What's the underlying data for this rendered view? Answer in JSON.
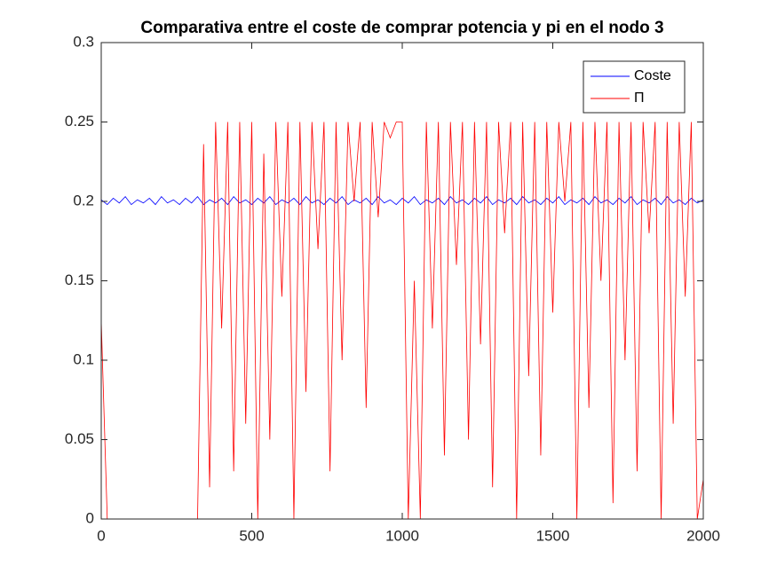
{
  "chart_data": {
    "type": "line",
    "title": "Comparativa entre el coste de comprar potencia y pi en el nodo 3",
    "x": [
      0,
      20,
      40,
      60,
      80,
      100,
      120,
      140,
      160,
      180,
      200,
      220,
      240,
      260,
      280,
      300,
      320,
      340,
      360,
      380,
      400,
      420,
      440,
      460,
      480,
      500,
      520,
      540,
      560,
      580,
      600,
      620,
      640,
      660,
      680,
      700,
      720,
      740,
      760,
      780,
      800,
      820,
      840,
      860,
      880,
      900,
      920,
      940,
      960,
      980,
      1000,
      1020,
      1040,
      1060,
      1080,
      1100,
      1120,
      1140,
      1160,
      1180,
      1200,
      1220,
      1240,
      1260,
      1280,
      1300,
      1320,
      1340,
      1360,
      1380,
      1400,
      1420,
      1440,
      1460,
      1480,
      1500,
      1520,
      1540,
      1560,
      1580,
      1600,
      1620,
      1640,
      1660,
      1680,
      1700,
      1720,
      1740,
      1760,
      1780,
      1800,
      1820,
      1840,
      1860,
      1880,
      1900,
      1920,
      1940,
      1960,
      1980,
      2000
    ],
    "series": [
      {
        "name": "Coste",
        "color": "#0000ff",
        "values": [
          0.201,
          0.198,
          0.202,
          0.199,
          0.203,
          0.198,
          0.201,
          0.199,
          0.202,
          0.198,
          0.203,
          0.199,
          0.201,
          0.198,
          0.202,
          0.199,
          0.203,
          0.198,
          0.201,
          0.199,
          0.202,
          0.198,
          0.203,
          0.199,
          0.201,
          0.198,
          0.202,
          0.199,
          0.203,
          0.198,
          0.201,
          0.199,
          0.202,
          0.198,
          0.203,
          0.199,
          0.201,
          0.198,
          0.202,
          0.199,
          0.203,
          0.198,
          0.201,
          0.199,
          0.202,
          0.198,
          0.203,
          0.199,
          0.201,
          0.198,
          0.202,
          0.199,
          0.203,
          0.198,
          0.201,
          0.199,
          0.202,
          0.198,
          0.203,
          0.199,
          0.201,
          0.198,
          0.202,
          0.199,
          0.203,
          0.198,
          0.201,
          0.199,
          0.202,
          0.198,
          0.203,
          0.199,
          0.201,
          0.198,
          0.202,
          0.199,
          0.203,
          0.198,
          0.201,
          0.199,
          0.202,
          0.198,
          0.203,
          0.199,
          0.201,
          0.198,
          0.202,
          0.199,
          0.203,
          0.198,
          0.201,
          0.199,
          0.202,
          0.198,
          0.203,
          0.199,
          0.201,
          0.198,
          0.202,
          0.199,
          0.201
        ]
      },
      {
        "name": "Π",
        "color": "#ff0000",
        "values": [
          0.125,
          0,
          0,
          0,
          0,
          0,
          0,
          0,
          0,
          0,
          0,
          0,
          0,
          0,
          0,
          0,
          0,
          0.236,
          0.02,
          0.25,
          0.12,
          0.25,
          0.03,
          0.25,
          0.06,
          0.25,
          0,
          0.23,
          0.05,
          0.25,
          0.14,
          0.25,
          0,
          0.25,
          0.08,
          0.25,
          0.17,
          0.25,
          0.03,
          0.25,
          0.1,
          0.25,
          0.2,
          0.25,
          0.07,
          0.25,
          0.19,
          0.25,
          0.24,
          0.25,
          0.25,
          0,
          0.15,
          0,
          0.25,
          0.12,
          0.25,
          0.04,
          0.25,
          0.16,
          0.25,
          0.05,
          0.25,
          0.11,
          0.25,
          0.02,
          0.25,
          0.18,
          0.25,
          0,
          0.25,
          0.09,
          0.25,
          0.04,
          0.25,
          0.13,
          0.25,
          0.2,
          0.25,
          0,
          0.25,
          0.07,
          0.25,
          0.15,
          0.25,
          0.01,
          0.25,
          0.1,
          0.25,
          0.03,
          0.25,
          0.18,
          0.25,
          0,
          0.25,
          0.06,
          0.25,
          0.14,
          0.25,
          0,
          0.025
        ]
      }
    ],
    "xlim": [
      0,
      2000
    ],
    "xticks": [
      0,
      500,
      1000,
      1500,
      2000
    ],
    "ylim": [
      0,
      0.3
    ],
    "yticks": [
      0,
      0.05,
      0.1,
      0.15,
      0.2,
      0.25,
      0.3
    ],
    "legend": "northeast"
  }
}
